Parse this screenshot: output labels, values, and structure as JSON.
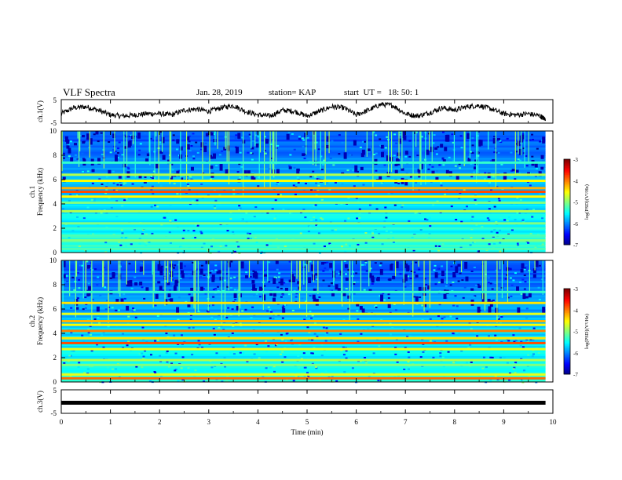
{
  "header": {
    "title": "VLF Spectra",
    "date": "Jan. 28, 2019",
    "station": "station= KAP",
    "start": "start  UT =   18: 50: 1"
  },
  "chart_data": [
    {
      "type": "line",
      "panel": "ch1-waveform",
      "ylabel": "ch.1(V)",
      "ylim": [
        -5,
        5
      ],
      "y_ticks": [
        "5",
        "-5"
      ],
      "xlim": [
        0,
        10
      ],
      "x": [
        0,
        0.25,
        0.5,
        0.75,
        1.0,
        1.25,
        1.5,
        1.75,
        2.0,
        2.25,
        2.5,
        2.75,
        3.0,
        3.25,
        3.5,
        3.75,
        4.0,
        4.25,
        4.5,
        4.75,
        5.0,
        5.25,
        5.5,
        5.75,
        6.0,
        6.25,
        6.5,
        6.75,
        7.0,
        7.25,
        7.5,
        7.75,
        8.0,
        8.25,
        8.5,
        8.75,
        9.0,
        9.25,
        9.5,
        9.75,
        9.85
      ],
      "y": [
        -1,
        1.5,
        2,
        0.5,
        -1.5,
        -2,
        -1.5,
        -1,
        -1,
        -1.5,
        0.5,
        1,
        0,
        1.5,
        2.5,
        0,
        -1.5,
        -2,
        0.5,
        0,
        -2,
        0,
        2,
        1.5,
        -1.5,
        0.5,
        3,
        2.5,
        -1,
        -2,
        -0.5,
        1.5,
        0.5,
        2,
        2.5,
        1,
        -1,
        -1.5,
        -1,
        -2,
        -3.5
      ]
    },
    {
      "type": "heatmap",
      "panel": "ch1-spectrogram",
      "ylabel": "ch.1",
      "ylabel2": "Frequency (kHz)",
      "ylim": [
        0,
        10
      ],
      "y_ticks": [
        "0",
        "2",
        "4",
        "6",
        "8",
        "10"
      ],
      "xlim": [
        0,
        10
      ],
      "colorbar": {
        "label": "log(PSD)(V²/Hz)",
        "range": [
          -7,
          -3
        ],
        "ticks": [
          "-3",
          "-4",
          "-5",
          "-6",
          "-7"
        ]
      },
      "bands": [
        {
          "freq": 0.3,
          "level": -5.2
        },
        {
          "freq": 1.0,
          "level": -5.0
        },
        {
          "freq": 1.4,
          "level": -5.2
        },
        {
          "freq": 2.0,
          "level": -5.3
        },
        {
          "freq": 2.4,
          "level": -5.0
        },
        {
          "freq": 3.1,
          "level": -5.4
        },
        {
          "freq": 3.4,
          "level": -4.8
        },
        {
          "freq": 4.1,
          "level": -5.0
        },
        {
          "freq": 4.6,
          "level": -4.5
        },
        {
          "freq": 5.0,
          "level": -3.8
        },
        {
          "freq": 5.3,
          "level": -4.2
        },
        {
          "freq": 5.9,
          "level": -4.5
        },
        {
          "freq": 6.4,
          "level": -4.8
        },
        {
          "freq": 7.4,
          "level": -5.3
        }
      ]
    },
    {
      "type": "heatmap",
      "panel": "ch2-spectrogram",
      "ylabel": "ch.2",
      "ylabel2": "Frequency (kHz)",
      "ylim": [
        0,
        10
      ],
      "y_ticks": [
        "0",
        "2",
        "4",
        "6",
        "8",
        "10"
      ],
      "xlim": [
        0,
        10
      ],
      "colorbar": {
        "label": "log(PSD)(V²/Hz)",
        "range": [
          -7,
          -3
        ],
        "ticks": [
          "-3",
          "-4",
          "-5",
          "-6",
          "-7"
        ]
      },
      "bands": [
        {
          "freq": 0.3,
          "level": -3.9
        },
        {
          "freq": 0.6,
          "level": -4.6
        },
        {
          "freq": 1.4,
          "level": -5.0
        },
        {
          "freq": 1.8,
          "level": -4.8
        },
        {
          "freq": 2.7,
          "level": -4.6
        },
        {
          "freq": 3.2,
          "level": -3.8
        },
        {
          "freq": 3.6,
          "level": -4.4
        },
        {
          "freq": 4.2,
          "level": -4.0
        },
        {
          "freq": 4.7,
          "level": -4.5
        },
        {
          "freq": 5.0,
          "level": -4.2
        },
        {
          "freq": 5.6,
          "level": -4.6
        },
        {
          "freq": 6.5,
          "level": -4.4
        },
        {
          "freq": 7.4,
          "level": -5.3
        }
      ]
    },
    {
      "type": "line",
      "panel": "ch3-waveform",
      "ylabel": "ch.3(V)",
      "ylim": [
        -5,
        5
      ],
      "y_ticks": [
        "5",
        "-5"
      ],
      "xlim": [
        0,
        10
      ],
      "x": [
        0,
        9.85
      ],
      "y": [
        -0.5,
        -0.5
      ],
      "xlabel": "Time (min)",
      "x_ticks": [
        "0",
        "1",
        "2",
        "3",
        "4",
        "5",
        "6",
        "7",
        "8",
        "9",
        "10"
      ]
    }
  ]
}
